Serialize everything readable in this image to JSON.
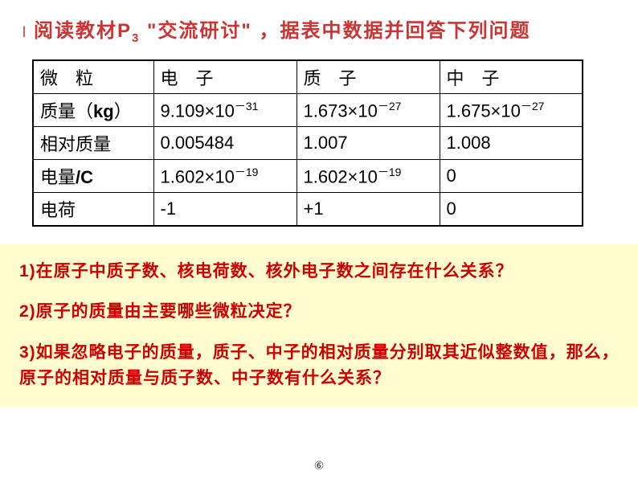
{
  "header": {
    "bullet": "l",
    "text_before_sub": "阅读教材P",
    "sub": "3",
    "text_after_sub": " \"交流研讨\" ，据表中数据并回答下列问题"
  },
  "table": {
    "col_widths": [
      "150px",
      "178px",
      "178px",
      "178px"
    ],
    "rows": [
      {
        "cells": [
          {
            "text": "微　粒"
          },
          {
            "text": "电　子"
          },
          {
            "text": "质　子"
          },
          {
            "text": "中　子"
          }
        ]
      },
      {
        "cells": [
          {
            "html": "质量（<b>kg</b>）"
          },
          {
            "html": "9.109×10<sup class='tiny'>－31</sup>"
          },
          {
            "html": "1.673×10<sup class='tiny'>－27</sup>"
          },
          {
            "html": "1.675×10<sup class='tiny'>－27</sup>"
          }
        ]
      },
      {
        "cells": [
          {
            "text": "相对质量"
          },
          {
            "text": "0.005484"
          },
          {
            "text": "1.007"
          },
          {
            "text": "1.008"
          }
        ]
      },
      {
        "cells": [
          {
            "html": "电量<b>/C</b>"
          },
          {
            "html": "1.602×10<sup class='tiny'>－19</sup>"
          },
          {
            "html": "1.602×10<sup class='tiny'>－19</sup>"
          },
          {
            "text": "0"
          }
        ]
      },
      {
        "cells": [
          {
            "text": "电荷"
          },
          {
            "text": "-1"
          },
          {
            "text": "+1"
          },
          {
            "text": "0"
          }
        ]
      }
    ]
  },
  "questions": {
    "q1": "1)在原子中质子数、核电荷数、核外电子数之间存在什么关系？",
    "q2": "2)原子的质量由主要哪些微粒决定？",
    "q3": "3)如果忽略电子的质量，质子、中子的相对质量分别取其近似整数值，那么，原子的相对质量与质子数、中子数有什么关系？"
  },
  "footer": "⑥",
  "colors": {
    "header_text": "#cc3333",
    "question_text": "#cc0000",
    "question_bg": "#fffdd0",
    "border": "#000000",
    "page_bg": "#ffffff"
  }
}
